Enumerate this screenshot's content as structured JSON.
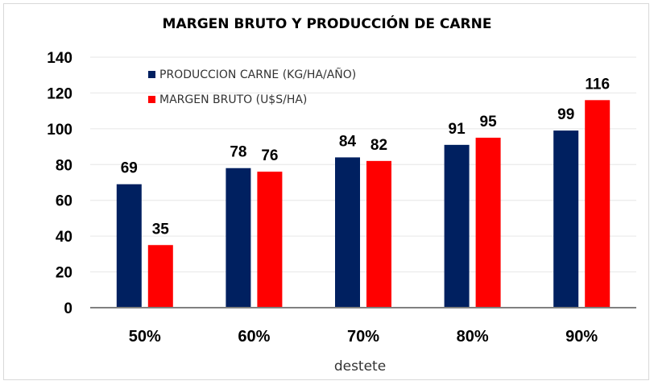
{
  "chart_data": {
    "type": "bar",
    "title": "MARGEN BRUTO Y PRODUCCIÓN DE CARNE",
    "xlabel": "destete",
    "ylabel": "",
    "categories": [
      "50%",
      "60%",
      "70%",
      "80%",
      "90%"
    ],
    "series": [
      {
        "name": "PRODUCCION CARNE (KG/HA/AÑO)",
        "color": "#002060",
        "values": [
          69,
          78,
          84,
          91,
          99
        ]
      },
      {
        "name": "MARGEN BRUTO (U$S/HA)",
        "color": "#ff0000",
        "values": [
          35,
          76,
          82,
          95,
          116
        ]
      }
    ],
    "ylim": [
      0,
      140
    ],
    "yticks": [
      0,
      20,
      40,
      60,
      80,
      100,
      120,
      140
    ],
    "grid": true,
    "legend_position": "top-left"
  }
}
